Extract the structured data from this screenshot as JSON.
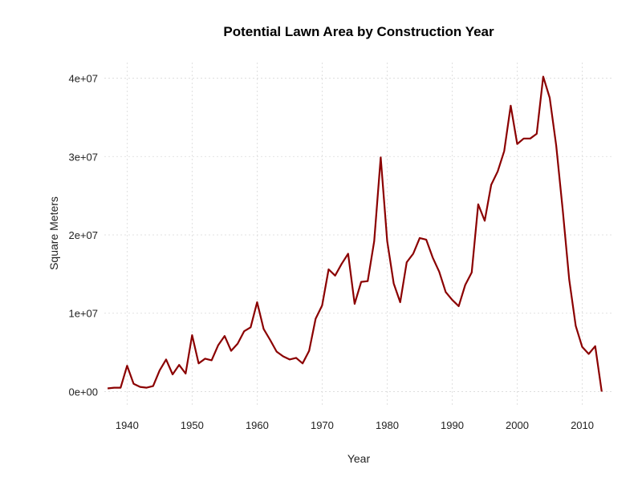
{
  "chart_data": {
    "type": "line",
    "title": "Potential Lawn Area by Construction Year",
    "xlabel": "Year",
    "ylabel": "Square Meters",
    "xlim": [
      1936.5,
      2014.5
    ],
    "ylim": [
      -2000000,
      42000000
    ],
    "x_ticks": [
      1940,
      1950,
      1960,
      1970,
      1980,
      1990,
      2000,
      2010
    ],
    "x_tick_labels": [
      "1940",
      "1950",
      "1960",
      "1970",
      "1980",
      "1990",
      "2000",
      "2010"
    ],
    "y_ticks": [
      0,
      10000000,
      20000000,
      30000000,
      40000000
    ],
    "y_tick_labels": [
      "0e+00",
      "1e+07",
      "2e+07",
      "3e+07",
      "4e+07"
    ],
    "grid": true,
    "line_color": "#8B0000",
    "x": [
      1937,
      1938,
      1939,
      1940,
      1941,
      1942,
      1943,
      1944,
      1945,
      1946,
      1947,
      1948,
      1949,
      1950,
      1951,
      1952,
      1953,
      1954,
      1955,
      1956,
      1957,
      1958,
      1959,
      1960,
      1961,
      1962,
      1963,
      1964,
      1965,
      1966,
      1967,
      1968,
      1969,
      1970,
      1971,
      1972,
      1973,
      1974,
      1975,
      1976,
      1977,
      1978,
      1979,
      1980,
      1981,
      1982,
      1983,
      1984,
      1985,
      1986,
      1987,
      1988,
      1989,
      1990,
      1991,
      1992,
      1993,
      1994,
      1995,
      1996,
      1997,
      1998,
      1999,
      2000,
      2001,
      2002,
      2003,
      2004,
      2005,
      2006,
      2007,
      2008,
      2009,
      2010,
      2011,
      2012,
      2013
    ],
    "y": [
      400000,
      500000,
      500000,
      3300000,
      1000000,
      600000,
      500000,
      700000,
      2700000,
      4100000,
      2200000,
      3400000,
      2300000,
      7200000,
      3600000,
      4200000,
      4000000,
      5900000,
      7100000,
      5200000,
      6100000,
      7700000,
      8200000,
      11400000,
      8000000,
      6600000,
      5100000,
      4500000,
      4100000,
      4300000,
      3600000,
      5200000,
      9300000,
      11000000,
      15600000,
      14800000,
      16300000,
      17600000,
      11200000,
      14000000,
      14100000,
      19200000,
      29900000,
      19200000,
      13800000,
      11400000,
      16500000,
      17600000,
      19600000,
      19400000,
      17100000,
      15300000,
      12700000,
      11700000,
      10900000,
      13600000,
      15200000,
      23900000,
      21800000,
      26400000,
      28100000,
      30700000,
      36500000,
      31600000,
      32300000,
      32300000,
      32900000,
      40200000,
      37500000,
      31400000,
      23200000,
      14300000,
      8400000,
      5700000,
      4800000,
      5800000,
      0
    ]
  }
}
